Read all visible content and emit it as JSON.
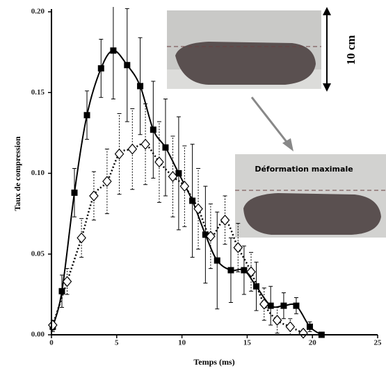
{
  "chart_data": {
    "type": "line",
    "x_label": "Temps (ms)",
    "y_label": "Taux de compression",
    "xlim": [
      0,
      25
    ],
    "ylim": [
      0,
      0.2
    ],
    "xticks": [
      0,
      5,
      10,
      15,
      20,
      25
    ],
    "yticks": [
      {
        "value": 0,
        "label": "0.00"
      },
      {
        "value": 0.05,
        "label": "0.05"
      },
      {
        "value": 0.1,
        "label": "0.10"
      },
      {
        "value": 0.15,
        "label": "0.15"
      },
      {
        "value": 0.2,
        "label": "0.20"
      }
    ],
    "annotations": [
      "10 cm",
      "Déformation maximale"
    ],
    "series": [
      {
        "color": "#000000",
        "marker": "square",
        "dash": false,
        "x": [
          0.1,
          0.8,
          1.76,
          2.72,
          3.8,
          4.74,
          5.8,
          6.8,
          7.8,
          8.74,
          9.75,
          10.8,
          11.8,
          12.7,
          13.75,
          14.76,
          15.7,
          16.8,
          17.8,
          18.76,
          19.8,
          20.7
        ],
        "values": [
          0.005,
          0.027,
          0.088,
          0.136,
          0.165,
          0.176,
          0.167,
          0.154,
          0.127,
          0.116,
          0.1,
          0.083,
          0.062,
          0.046,
          0.04,
          0.04,
          0.03,
          0.018,
          0.018,
          0.018,
          0.005,
          0.0
        ],
        "errors": [
          0.003,
          0.01,
          0.015,
          0.015,
          0.018,
          0.03,
          0.035,
          0.03,
          0.03,
          0.03,
          0.035,
          0.035,
          0.03,
          0.03,
          0.02,
          0.015,
          0.015,
          0.012,
          0.008,
          0.005,
          0.003,
          0.0
        ]
      },
      {
        "color": "#000000",
        "marker": "diamond",
        "dash": true,
        "x": [
          0.1,
          1.2,
          2.3,
          3.25,
          4.26,
          5.2,
          6.2,
          7.2,
          8.26,
          9.3,
          10.2,
          11.25,
          12.2,
          13.3,
          14.3,
          15.3,
          16.3,
          17.3,
          18.3,
          19.3
        ],
        "values": [
          0.006,
          0.033,
          0.06,
          0.086,
          0.095,
          0.112,
          0.115,
          0.118,
          0.107,
          0.098,
          0.092,
          0.078,
          0.061,
          0.071,
          0.054,
          0.039,
          0.019,
          0.009,
          0.005,
          0.001
        ],
        "errors": [
          0.003,
          0.008,
          0.012,
          0.015,
          0.02,
          0.025,
          0.025,
          0.025,
          0.025,
          0.025,
          0.025,
          0.025,
          0.02,
          0.015,
          0.015,
          0.012,
          0.01,
          0.008,
          0.005,
          0.002
        ]
      }
    ]
  }
}
